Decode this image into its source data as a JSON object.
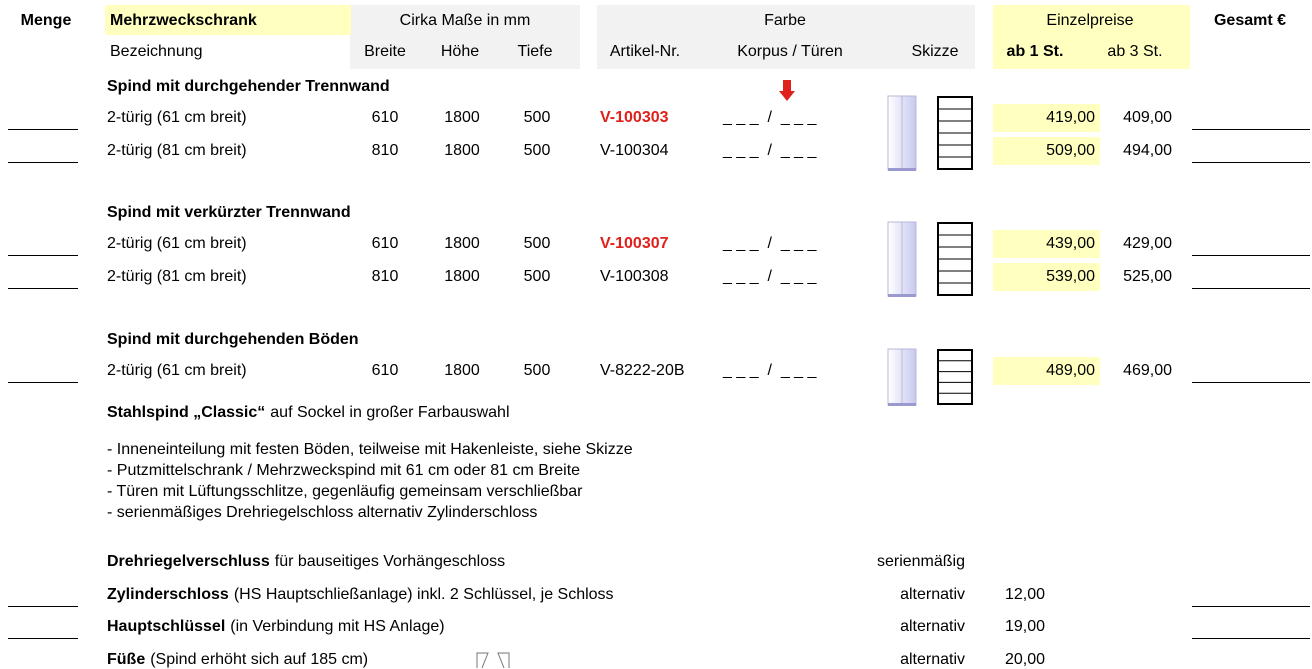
{
  "header": {
    "quantity": "Menge",
    "product": "Mehrzweckschrank",
    "dimensions": "Cirka Maße in mm",
    "color": "Farbe",
    "unit_prices": "Einzelpreise",
    "total": "Gesamt €",
    "sub": {
      "designation": "Bezeichnung",
      "width": "Breite",
      "height": "Höhe",
      "depth": "Tiefe",
      "article": "Artikel-Nr.",
      "body_doors": "Korpus / Türen",
      "sketch": "Skizze",
      "price_1": "ab 1 St.",
      "price_3": "ab 3 St."
    }
  },
  "sections": [
    {
      "title": "Spind mit durchgehender Trennwand",
      "rows": [
        {
          "name": "2-türig (61 cm breit)",
          "width": 610,
          "height": 1800,
          "depth": 500,
          "article": "V-100303",
          "highlight": true,
          "color_field": "_ _ _  /  _ _ _",
          "price_1": "419,00",
          "price_3": "409,00"
        },
        {
          "name": "2-türig (81 cm breit)",
          "width": 810,
          "height": 1800,
          "depth": 500,
          "article": "V-100304",
          "highlight": false,
          "color_field": "_ _ _  /  _ _ _",
          "price_1": "509,00",
          "price_3": "494,00"
        }
      ]
    },
    {
      "title": "Spind mit verkürzter Trennwand",
      "rows": [
        {
          "name": "2-türig (61 cm breit)",
          "width": 610,
          "height": 1800,
          "depth": 500,
          "article": "V-100307",
          "highlight": true,
          "color_field": "_ _ _  /  _ _ _",
          "price_1": "439,00",
          "price_3": "429,00"
        },
        {
          "name": "2-türig (81 cm breit)",
          "width": 810,
          "height": 1800,
          "depth": 500,
          "article": "V-100308",
          "highlight": false,
          "color_field": "_ _ _  /  _ _ _",
          "price_1": "539,00",
          "price_3": "525,00"
        }
      ]
    },
    {
      "title": "Spind mit durchgehenden Böden",
      "rows": [
        {
          "name": "2-türig (61 cm breit)",
          "width": 610,
          "height": 1800,
          "depth": 500,
          "article": "V-8222-20B",
          "highlight": false,
          "color_field": "_ _ _  /  _ _ _",
          "price_1": "489,00",
          "price_3": "469,00"
        }
      ]
    }
  ],
  "description": {
    "title_bold": "Stahlspind „Classic“",
    "title_rest": "auf Sockel in großer Farbauswahl",
    "bullets": [
      "- Inneneinteilung mit festen Böden, teilweise mit Hakenleiste, siehe Skizze",
      "- Putzmittelschrank / Mehrzweckspind mit 61 cm oder 81 cm Breite",
      "- Türen mit Lüftungsschlitze, gegenläufig gemeinsam verschließbar",
      "- serienmäßiges Drehriegelschloss alternativ Zylinderschloss"
    ]
  },
  "options": [
    {
      "name": "Drehriegelverschluss",
      "text": "für bauseitiges Vorhängeschloss",
      "status": "serienmäßig"
    },
    {
      "name": "Zylinderschloss",
      "text": "(HS Hauptschließanlage) inkl. 2 Schlüssel, je Schloss",
      "status": "alternativ",
      "price": "12,00"
    },
    {
      "name": "Hauptschlüssel",
      "text": "(in Verbindung mit HS Anlage)",
      "status": "alternativ",
      "price": "19,00"
    },
    {
      "name": "Füße",
      "text": "(Spind erhöht sich auf 185 cm)",
      "status": "alternativ",
      "price": "20,00"
    }
  ]
}
